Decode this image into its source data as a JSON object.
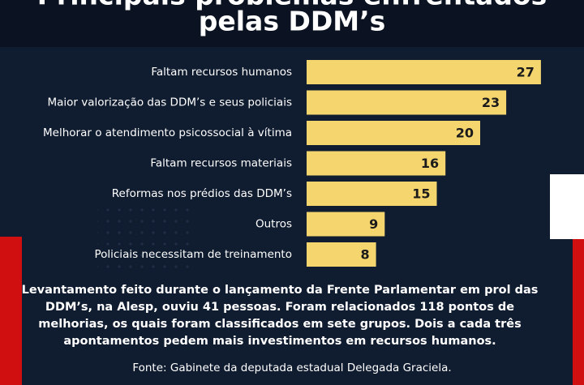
{
  "chart_data": {
    "type": "bar",
    "orientation": "horizontal",
    "title": [
      "Principais problemas enfrentados",
      "pelas DDM’s"
    ],
    "categories": [
      "Faltam recursos humanos",
      "Maior valorização das DDM’s e seus policiais",
      "Melhorar o atendimento psicossocial à vítima",
      "Faltam recursos materiais",
      "Reformas nos prédios das DDM’s",
      "Outros",
      "Policiais necessitam de treinamento"
    ],
    "values": [
      27,
      23,
      20,
      16,
      15,
      9,
      8
    ],
    "color": "#f5d66e",
    "note": [
      "Levantamento feito durante o lançamento da Frente Parlamentar em prol das",
      "DDM’s, na Alesp, ouviu 41 pessoas. Foram relacionados 118 pontos de",
      "melhorias, os quais foram classificados em sete grupos. Dois a cada três",
      "apontamentos pedem mais investimentos em recursos humanos."
    ],
    "source": "Fonte: Gabinete da deputada estadual Delegada Graciela."
  }
}
